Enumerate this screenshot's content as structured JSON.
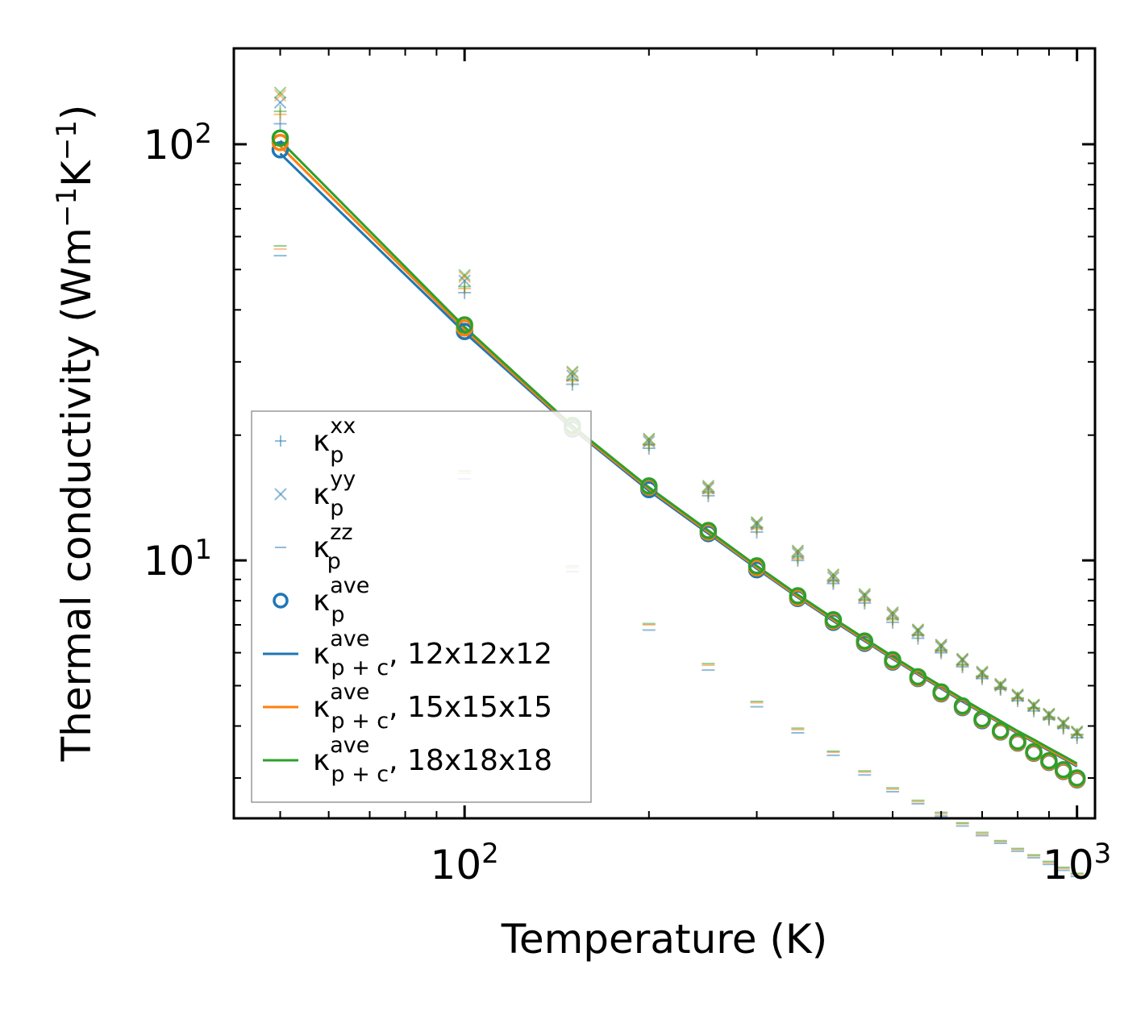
{
  "chart_data": {
    "type": "scatter",
    "scale": {
      "x": "log",
      "y": "log"
    },
    "xlabel": "Temperature (K)",
    "ylabel": "Thermal conductivity (Wm",
    "ylabel_parts": {
      "pre": "Thermal conductivity (Wm",
      "sup1": "−1",
      "mid": "K",
      "sup2": "−1",
      "post": ")"
    },
    "xlim": [
      42,
      1070
    ],
    "ylim": [
      2.4,
      170
    ],
    "x_ticks": [
      {
        "value": 100,
        "base": "10",
        "exp": "2"
      },
      {
        "value": 1000,
        "base": "10",
        "exp": "3"
      }
    ],
    "y_ticks": [
      {
        "value": 10,
        "base": "10",
        "exp": "1"
      },
      {
        "value": 100,
        "base": "10",
        "exp": "2"
      }
    ],
    "temperatures": [
      50,
      100,
      150,
      200,
      250,
      300,
      350,
      400,
      450,
      500,
      550,
      600,
      650,
      700,
      750,
      800,
      850,
      900,
      950,
      1000
    ],
    "colors": {
      "12x12x12": "#1f77b4",
      "15x15x15": "#ff7f0e",
      "18x18x18": "#2ca02c"
    },
    "series": [
      {
        "name": "kxx_12",
        "marker": "plus",
        "color": "#1f77b4",
        "values": [
          112,
          44,
          26.5,
          18.6,
          14.3,
          11.7,
          10.0,
          8.8,
          7.9,
          7.1,
          6.5,
          6.0,
          5.55,
          5.2,
          4.9,
          4.6,
          4.35,
          4.15,
          3.95,
          3.75
        ]
      },
      {
        "name": "kxx_15",
        "marker": "plus",
        "color": "#ff7f0e",
        "values": [
          118,
          45,
          27,
          18.9,
          14.5,
          11.9,
          10.1,
          8.9,
          8.0,
          7.2,
          6.6,
          6.05,
          5.6,
          5.25,
          4.93,
          4.65,
          4.4,
          4.18,
          3.98,
          3.8
        ]
      },
      {
        "name": "kxx_18",
        "marker": "plus",
        "color": "#2ca02c",
        "values": [
          120,
          45.5,
          27.2,
          19.0,
          14.6,
          12.0,
          10.2,
          8.95,
          8.05,
          7.25,
          6.62,
          6.08,
          5.62,
          5.27,
          4.95,
          4.67,
          4.42,
          4.2,
          4.0,
          3.82
        ]
      },
      {
        "name": "kyy_12",
        "marker": "cross",
        "color": "#1f77b4",
        "values": [
          126,
          47,
          27.8,
          19.3,
          14.9,
          12.2,
          10.4,
          9.1,
          8.2,
          7.4,
          6.75,
          6.2,
          5.75,
          5.35,
          5.0,
          4.72,
          4.47,
          4.25,
          4.05,
          3.85
        ]
      },
      {
        "name": "kyy_15",
        "marker": "cross",
        "color": "#ff7f0e",
        "values": [
          131,
          48,
          28.2,
          19.5,
          15.0,
          12.3,
          10.5,
          9.2,
          8.25,
          7.45,
          6.8,
          6.25,
          5.78,
          5.38,
          5.03,
          4.74,
          4.49,
          4.27,
          4.07,
          3.87
        ]
      },
      {
        "name": "kyy_18",
        "marker": "cross",
        "color": "#2ca02c",
        "values": [
          133,
          48.5,
          28.4,
          19.6,
          15.1,
          12.35,
          10.55,
          9.25,
          8.3,
          7.5,
          6.82,
          6.27,
          5.8,
          5.4,
          5.05,
          4.76,
          4.5,
          4.28,
          4.08,
          3.88
        ]
      },
      {
        "name": "kzz_12",
        "marker": "minus",
        "color": "#1f77b4",
        "values": [
          54,
          15.7,
          9.4,
          6.8,
          5.45,
          4.45,
          3.85,
          3.4,
          3.05,
          2.78,
          2.6,
          2.43,
          2.3,
          2.18,
          2.09,
          2.0,
          1.93,
          1.86,
          1.8,
          1.74
        ]
      },
      {
        "name": "kzz_15",
        "marker": "minus",
        "color": "#ff7f0e",
        "values": [
          56,
          16.2,
          9.6,
          7.0,
          5.6,
          4.55,
          3.92,
          3.46,
          3.1,
          2.82,
          2.63,
          2.46,
          2.33,
          2.2,
          2.11,
          2.02,
          1.95,
          1.88,
          1.82,
          1.76
        ]
      },
      {
        "name": "kzz_18",
        "marker": "minus",
        "color": "#2ca02c",
        "values": [
          57,
          16.4,
          9.7,
          7.05,
          5.65,
          4.58,
          3.95,
          3.48,
          3.12,
          2.84,
          2.65,
          2.48,
          2.34,
          2.22,
          2.12,
          2.03,
          1.96,
          1.89,
          1.83,
          1.77
        ]
      },
      {
        "name": "kave_12",
        "marker": "circle",
        "color": "#1f77b4",
        "values": [
          97,
          35.5,
          20.7,
          14.8,
          11.6,
          9.5,
          8.1,
          7.1,
          6.32,
          5.7,
          5.2,
          4.78,
          4.43,
          4.12,
          3.87,
          3.64,
          3.44,
          3.27,
          3.11,
          2.97
        ]
      },
      {
        "name": "kave_15",
        "marker": "circle",
        "color": "#ff7f0e",
        "values": [
          101,
          36.2,
          20.9,
          15.0,
          11.7,
          9.6,
          8.15,
          7.15,
          6.36,
          5.73,
          5.22,
          4.8,
          4.45,
          4.14,
          3.88,
          3.65,
          3.45,
          3.28,
          3.12,
          2.98
        ]
      },
      {
        "name": "kave_18",
        "marker": "circle",
        "color": "#2ca02c",
        "values": [
          103.5,
          36.8,
          21.1,
          15.1,
          11.8,
          9.7,
          8.22,
          7.2,
          6.4,
          5.77,
          5.25,
          4.83,
          4.47,
          4.16,
          3.9,
          3.67,
          3.47,
          3.3,
          3.14,
          3.0
        ]
      },
      {
        "name": "line_12",
        "marker": "line",
        "color": "#1f77b4",
        "values": [
          95,
          35.3,
          20.7,
          14.7,
          11.6,
          9.55,
          8.15,
          7.15,
          6.4,
          5.8,
          5.32,
          4.92,
          4.58,
          4.3,
          4.06,
          3.84,
          3.66,
          3.49,
          3.34,
          3.2
        ]
      },
      {
        "name": "line_15",
        "marker": "line",
        "color": "#ff7f0e",
        "values": [
          99,
          35.9,
          20.85,
          14.85,
          11.7,
          9.62,
          8.2,
          7.2,
          6.44,
          5.83,
          5.35,
          4.95,
          4.61,
          4.32,
          4.08,
          3.86,
          3.68,
          3.51,
          3.36,
          3.22
        ]
      },
      {
        "name": "line_18",
        "marker": "line",
        "color": "#2ca02c",
        "values": [
          102,
          36.4,
          21.05,
          14.98,
          11.8,
          9.7,
          8.27,
          7.26,
          6.49,
          5.88,
          5.39,
          4.99,
          4.65,
          4.36,
          4.11,
          3.89,
          3.71,
          3.54,
          3.39,
          3.25
        ]
      }
    ],
    "legend": {
      "position": "lower-left",
      "entries": [
        {
          "symbol": "plus",
          "color": "#1f77b4",
          "base": "κ",
          "sub": "p",
          "sup": "xx",
          "suffix": ""
        },
        {
          "symbol": "cross",
          "color": "#1f77b4",
          "base": "κ",
          "sub": "p",
          "sup": "yy",
          "suffix": ""
        },
        {
          "symbol": "minus",
          "color": "#1f77b4",
          "base": "κ",
          "sub": "p",
          "sup": "zz",
          "suffix": ""
        },
        {
          "symbol": "circle",
          "color": "#1f77b4",
          "base": "κ",
          "sub": "p",
          "sup": "ave",
          "suffix": ""
        },
        {
          "symbol": "line",
          "color": "#1f77b4",
          "base": "κ",
          "sub": "p + c",
          "sup": "ave",
          "suffix": ", 12x12x12"
        },
        {
          "symbol": "line",
          "color": "#ff7f0e",
          "base": "κ",
          "sub": "p + c",
          "sup": "ave",
          "suffix": ", 15x15x15"
        },
        {
          "symbol": "line",
          "color": "#2ca02c",
          "base": "κ",
          "sub": "p + c",
          "sup": "ave",
          "suffix": ", 18x18x18"
        }
      ]
    },
    "grid": false
  }
}
